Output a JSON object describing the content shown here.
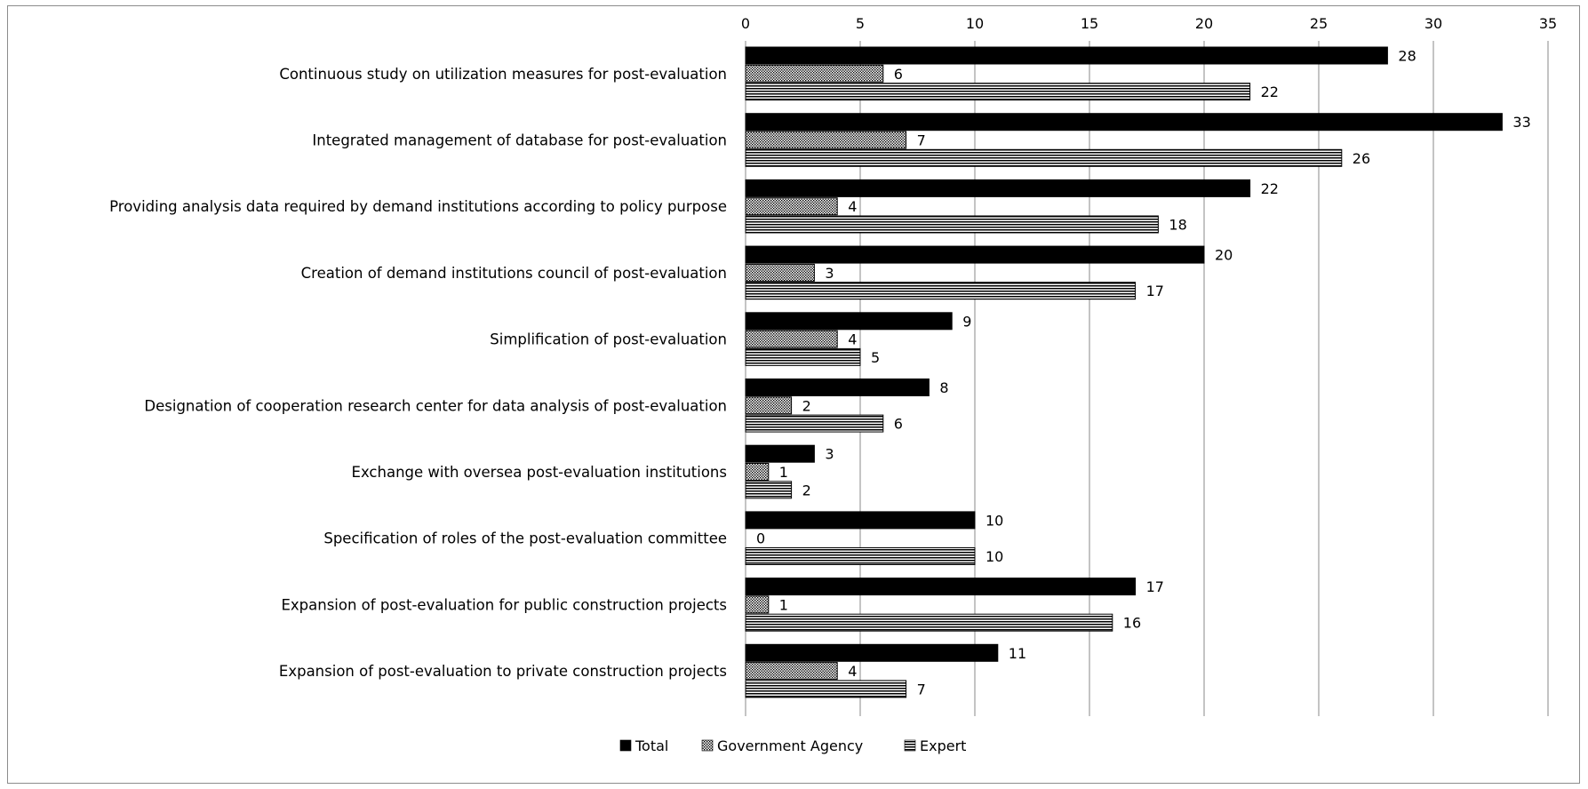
{
  "chart_data": {
    "type": "bar",
    "orientation": "horizontal",
    "categories": [
      "Continuous study on utilization measures for post-evaluation",
      "Integrated management of database for post-evaluation",
      "Providing analysis data required by demand institutions according to policy purpose",
      "Creation of demand institutions council of post-evaluation",
      "Simplification of post-evaluation",
      "Designation of cooperation research center for data analysis of post-evaluation",
      "Exchange with oversea post-evaluation institutions",
      "Specification of roles of the post-evaluation committee",
      "Expansion of post-evaluation for public construction projects",
      "Expansion of post-evaluation to private construction projects"
    ],
    "series": [
      {
        "name": "Total",
        "values": [
          28,
          33,
          22,
          20,
          9,
          8,
          3,
          10,
          17,
          11
        ],
        "pattern": "solid",
        "color": "#000000"
      },
      {
        "name": "Government Agency",
        "values": [
          6,
          7,
          4,
          3,
          4,
          2,
          1,
          0,
          1,
          4
        ],
        "pattern": "dotted",
        "color": "#000000"
      },
      {
        "name": "Expert",
        "values": [
          22,
          26,
          18,
          17,
          5,
          6,
          2,
          10,
          16,
          7
        ],
        "pattern": "horizontal-lines",
        "color": "#000000"
      }
    ],
    "xlim": [
      0,
      35
    ],
    "xticks": [
      0,
      5,
      10,
      15,
      20,
      25,
      30,
      35
    ],
    "x_axis_position": "top",
    "grid": "vertical",
    "legend_position": "bottom",
    "data_labels": true,
    "title": "",
    "xlabel": "",
    "ylabel": ""
  }
}
